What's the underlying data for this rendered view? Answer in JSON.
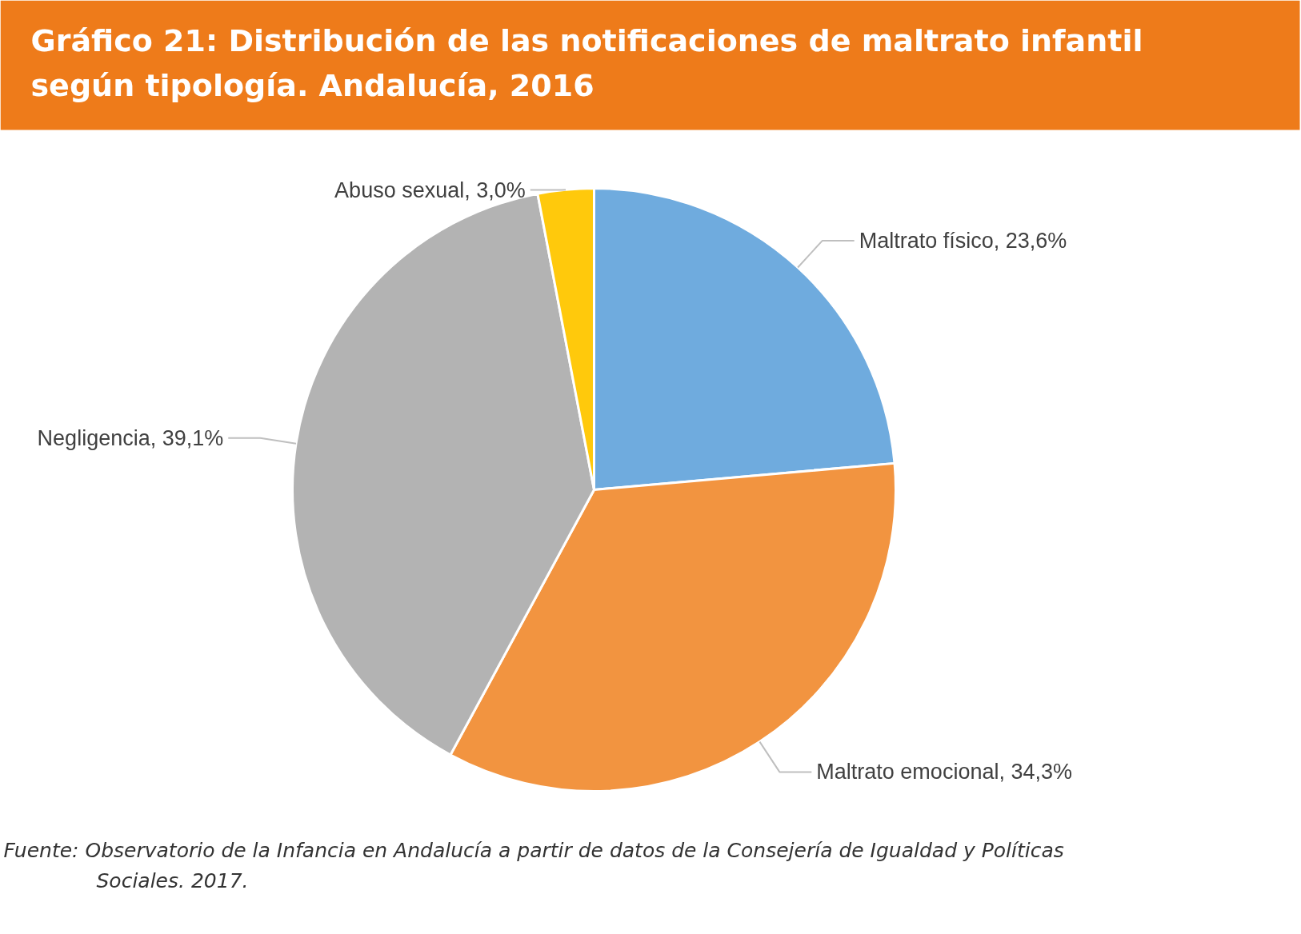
{
  "chart_data": {
    "type": "pie",
    "title": "Gráfico 21: Distribución de las notificaciones de maltrato infantil según tipología. Andalucía, 2016",
    "categories": [
      "Maltrato  físico",
      "Maltrato emocional",
      "Negligencia",
      "Abuso sexual"
    ],
    "values": [
      23.6,
      34.3,
      39.1,
      3.0
    ],
    "value_labels": [
      "23,6%",
      "34,3%",
      "39,1%",
      "3,0%"
    ],
    "colors": [
      "#6fabde",
      "#f29440",
      "#b3b3b3",
      "#ffc90c"
    ],
    "annotations": [
      "Fuente: Observatorio de la Infancia en Andalucía a partir de datos de la Consejería de Igualdad y Políticas Sociales. 2017."
    ]
  }
}
